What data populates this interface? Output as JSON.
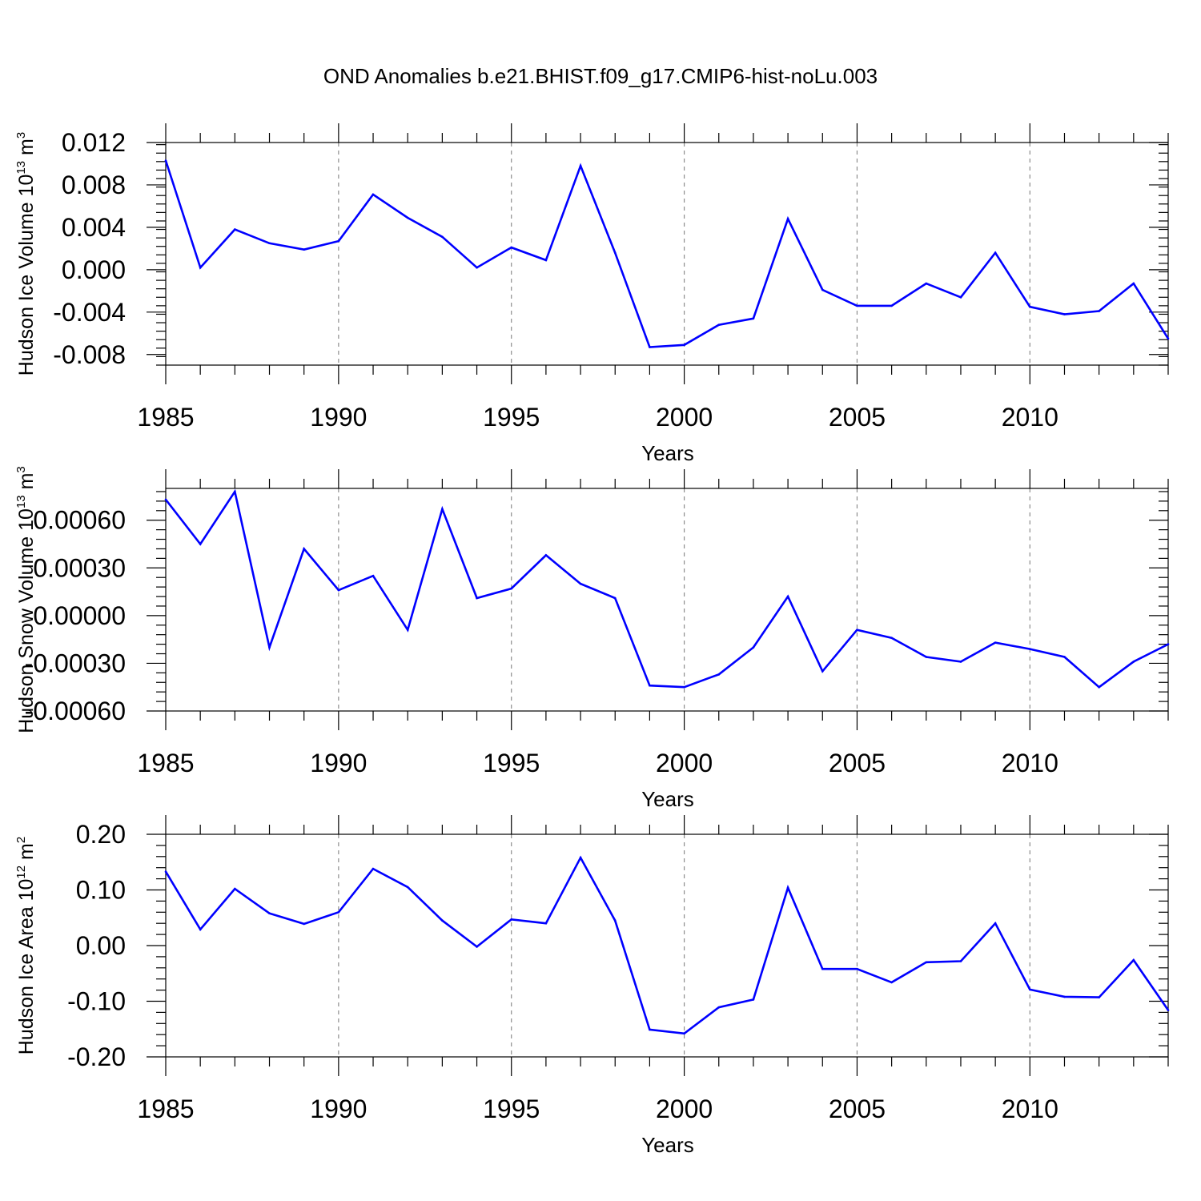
{
  "title": "OND Anomalies b.e21.BHIST.f09_g17.CMIP6-hist-noLu.003",
  "colors": {
    "series": "#0000ff",
    "grid": "#8c8c8c",
    "axis": "#000000"
  },
  "chart_data": [
    {
      "type": "line",
      "xlabel": "Years",
      "ylabel_main": "Hudson Ice Volume 10",
      "ylabel_sup1": "13",
      "ylabel_unit": " m",
      "ylabel_sup2": "3",
      "xlim": [
        1985,
        2014
      ],
      "ylim": [
        -0.009,
        0.012
      ],
      "xticks": [
        1985,
        1990,
        1995,
        2000,
        2005,
        2010
      ],
      "yticks": [
        -0.008,
        -0.004,
        0.0,
        0.004,
        0.008,
        0.012
      ],
      "ytick_labels": [
        "-0.008",
        "-0.004",
        "0.000",
        "0.004",
        "0.008",
        "0.012"
      ],
      "grid": "x-dashed",
      "x": [
        1985,
        1986,
        1987,
        1988,
        1989,
        1990,
        1991,
        1992,
        1993,
        1994,
        1995,
        1996,
        1997,
        1998,
        1999,
        2000,
        2001,
        2002,
        2003,
        2004,
        2005,
        2006,
        2007,
        2008,
        2009,
        2010,
        2011,
        2012,
        2013,
        2014
      ],
      "values": [
        0.0103,
        0.0002,
        0.0038,
        0.0025,
        0.0019,
        0.0027,
        0.0071,
        0.0049,
        0.0031,
        0.0002,
        0.0021,
        0.0009,
        0.0098,
        0.0016,
        -0.0073,
        -0.0071,
        -0.0052,
        -0.0046,
        0.0048,
        -0.0019,
        -0.0034,
        -0.0034,
        -0.0013,
        -0.0026,
        0.0016,
        -0.0035,
        -0.0042,
        -0.0039,
        -0.0013,
        -0.0065
      ]
    },
    {
      "type": "line",
      "xlabel": "Years",
      "ylabel_main": "Hudson Snow Volume 10",
      "ylabel_sup1": "13",
      "ylabel_unit": " m",
      "ylabel_sup2": "3",
      "xlim": [
        1985,
        2014
      ],
      "ylim": [
        -0.0006,
        0.0008
      ],
      "xticks": [
        1985,
        1990,
        1995,
        2000,
        2005,
        2010
      ],
      "yticks": [
        -0.0006,
        -0.0003,
        0.0,
        0.0003,
        0.0006
      ],
      "ytick_labels": [
        "-0.00060",
        "-0.00030",
        "0.00000",
        "0.00030",
        "0.00060"
      ],
      "grid": "x-dashed",
      "x": [
        1985,
        1986,
        1987,
        1988,
        1989,
        1990,
        1991,
        1992,
        1993,
        1994,
        1995,
        1996,
        1997,
        1998,
        1999,
        2000,
        2001,
        2002,
        2003,
        2004,
        2005,
        2006,
        2007,
        2008,
        2009,
        2010,
        2011,
        2012,
        2013,
        2014
      ],
      "values": [
        0.00073,
        0.00045,
        0.00078,
        -0.0002,
        0.00042,
        0.00016,
        0.00025,
        -9e-05,
        0.00067,
        0.00011,
        0.00017,
        0.00038,
        0.0002,
        0.00011,
        -0.00044,
        -0.00045,
        -0.00037,
        -0.0002,
        0.00012,
        -0.00035,
        -9e-05,
        -0.00014,
        -0.00026,
        -0.00029,
        -0.00017,
        -0.00021,
        -0.00026,
        -0.00045,
        -0.00029,
        -0.00018
      ]
    },
    {
      "type": "line",
      "xlabel": "Years",
      "ylabel_main": "Hudson Ice Area 10",
      "ylabel_sup1": "12",
      "ylabel_unit": " m",
      "ylabel_sup2": "2",
      "xlim": [
        1985,
        2014
      ],
      "ylim": [
        -0.2,
        0.2
      ],
      "xticks": [
        1985,
        1990,
        1995,
        2000,
        2005,
        2010
      ],
      "yticks": [
        -0.2,
        -0.1,
        0.0,
        0.1,
        0.2
      ],
      "ytick_labels": [
        "-0.20",
        "-0.10",
        "0.00",
        "0.10",
        "0.20"
      ],
      "grid": "x-dashed",
      "x": [
        1985,
        1986,
        1987,
        1988,
        1989,
        1990,
        1991,
        1992,
        1993,
        1994,
        1995,
        1996,
        1997,
        1998,
        1999,
        2000,
        2001,
        2002,
        2003,
        2004,
        2005,
        2006,
        2007,
        2008,
        2009,
        2010,
        2011,
        2012,
        2013,
        2014
      ],
      "values": [
        0.133,
        0.029,
        0.102,
        0.058,
        0.039,
        0.06,
        0.138,
        0.105,
        0.045,
        -0.002,
        0.047,
        0.04,
        0.158,
        0.045,
        -0.151,
        -0.158,
        -0.111,
        -0.097,
        0.104,
        -0.042,
        -0.042,
        -0.066,
        -0.03,
        -0.028,
        0.04,
        -0.079,
        -0.092,
        -0.093,
        -0.026,
        -0.116
      ]
    }
  ]
}
